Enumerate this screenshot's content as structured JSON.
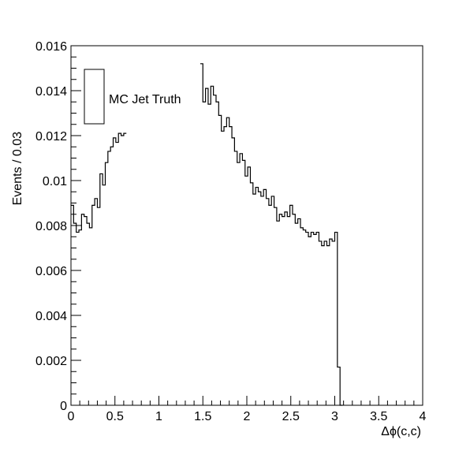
{
  "chart_data": {
    "type": "line",
    "xlabel": "Δϕ(c,c)",
    "ylabel": "Events / 0.03",
    "xlim": [
      0,
      4
    ],
    "ylim": [
      0,
      0.016
    ],
    "grid": false,
    "legend_position": "top-left",
    "x_ticks": [
      "0",
      "0.5",
      "1",
      "1.5",
      "2",
      "2.5",
      "3",
      "3.5",
      "4"
    ],
    "y_ticks": [
      "0",
      "0.002",
      "0.004",
      "0.006",
      "0.008",
      "0.01",
      "0.012",
      "0.014",
      "0.016"
    ],
    "series": [
      {
        "name": "MC Jet Truth",
        "style": "histogram",
        "color": "#000000",
        "bin_width": 0.03,
        "x_start": 0,
        "values": [
          0.0089,
          0.0081,
          0.0077,
          0.0078,
          0.0085,
          0.0084,
          0.0081,
          0.0079,
          0.0089,
          0.0092,
          0.0088,
          0.0103,
          0.0098,
          0.0108,
          0.0113,
          0.0115,
          0.0119,
          0.0117,
          0.0121,
          0.012,
          0.0121,
          null,
          null,
          null,
          null,
          null,
          null,
          null,
          null,
          null,
          null,
          null,
          null,
          null,
          null,
          null,
          null,
          null,
          null,
          null,
          null,
          null,
          null,
          null,
          null,
          null,
          null,
          null,
          null,
          0.0152,
          0.0135,
          0.0141,
          0.0134,
          0.0142,
          0.0138,
          0.0135,
          0.0129,
          0.0122,
          0.0124,
          0.0128,
          0.0124,
          0.0119,
          0.0113,
          0.0108,
          0.0112,
          0.0109,
          0.0102,
          0.0106,
          0.0099,
          0.0094,
          0.0097,
          0.0095,
          0.0093,
          0.0096,
          0.0092,
          0.0089,
          0.0093,
          0.0088,
          0.0082,
          0.0085,
          0.0084,
          0.0086,
          0.0084,
          0.0089,
          0.0085,
          0.0081,
          0.0083,
          0.0079,
          0.0078,
          0.0077,
          0.0075,
          0.0077,
          0.0076,
          0.0077,
          0.0073,
          0.0071,
          0.0073,
          0.0071,
          0.0074,
          0.0073,
          0.0077,
          0.0017,
          0.0
        ]
      }
    ]
  }
}
